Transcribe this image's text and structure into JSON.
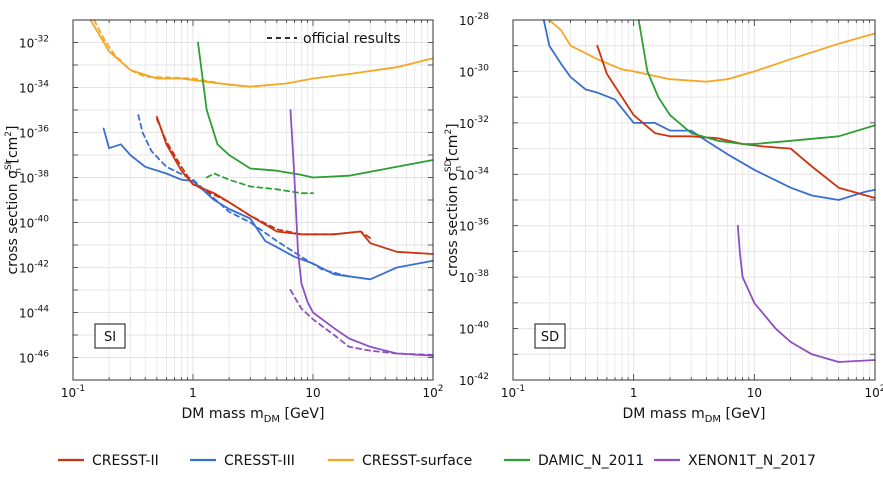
{
  "colors": {
    "cresst_ii": "#cc3311",
    "cresst_iii": "#3a6fd1",
    "cresst_surface": "#f5a623",
    "damic": "#2e9e35",
    "xenon": "#8e4fc4",
    "grid": "#e4e4e4",
    "frame": "#333333"
  },
  "legend_items": [
    {
      "key": "cresst_ii",
      "label": "CRESST-II"
    },
    {
      "key": "cresst_iii",
      "label": "CRESST-III"
    },
    {
      "key": "cresst_surface",
      "label": "CRESST-surface"
    },
    {
      "key": "damic",
      "label": "DAMIC_N_2011"
    },
    {
      "key": "xenon",
      "label": "XENON1T_N_2017"
    }
  ],
  "chart_data": [
    {
      "type": "line",
      "panel_label": "SI",
      "xlabel": "DM mass m_DM [GeV]",
      "ylabel": "cross section σ_n^SI [cm²]",
      "x_scale": "log",
      "y_scale": "log",
      "xlim": [
        0.1,
        100
      ],
      "ylim": [
        1e-47,
        1e-31
      ],
      "x_tick_labels": [
        {
          "base": "10",
          "exp": "-1"
        },
        {
          "base": "1",
          "exp": ""
        },
        {
          "base": "10",
          "exp": ""
        },
        {
          "base": "10",
          "exp": "2"
        }
      ],
      "y_tick_labels": [
        "-32",
        "-34",
        "-36",
        "-38",
        "-40",
        "-42",
        "-44",
        "-46"
      ],
      "grid": true,
      "annotation": "official results",
      "annotation_position": "top-right",
      "series": [
        {
          "key": "cresst_surface",
          "name": "CRESST-surface",
          "style": "solid",
          "points": [
            [
              0.14,
              1e-31
            ],
            [
              0.16,
              3e-32
            ],
            [
              0.2,
              4e-33
            ],
            [
              0.3,
              6e-34
            ],
            [
              0.5,
              2.5e-34
            ],
            [
              0.8,
              2.5e-34
            ],
            [
              1.5,
              1.6e-34
            ],
            [
              3,
              1.1e-34
            ],
            [
              6,
              1.5e-34
            ],
            [
              10,
              2.5e-34
            ],
            [
              20,
              4e-34
            ],
            [
              50,
              8e-34
            ],
            [
              100,
              2e-33
            ]
          ]
        },
        {
          "key": "cresst_surface",
          "name": "CRESST-surface",
          "style": "dashed",
          "points": [
            [
              0.15,
              1e-31
            ],
            [
              0.18,
              1.5e-32
            ],
            [
              0.22,
              3e-33
            ],
            [
              0.3,
              6e-34
            ],
            [
              0.4,
              3e-34
            ],
            [
              0.6,
              2.8e-34
            ],
            [
              1,
              2.5e-34
            ],
            [
              2,
              1.3e-34
            ],
            [
              3,
              1.1e-34
            ],
            [
              4,
              1.2e-34
            ]
          ]
        },
        {
          "key": "cresst_iii",
          "name": "CRESST-III",
          "style": "solid",
          "points": [
            [
              0.18,
              1.5e-36
            ],
            [
              0.2,
              2e-37
            ],
            [
              0.25,
              3e-37
            ],
            [
              0.3,
              1e-37
            ],
            [
              0.4,
              3e-38
            ],
            [
              0.6,
              1.5e-38
            ],
            [
              0.8,
              8e-39
            ],
            [
              1,
              7e-39
            ],
            [
              1.5,
              1e-39
            ],
            [
              2,
              4e-40
            ],
            [
              3,
              1.5e-40
            ],
            [
              4,
              1.5e-41
            ],
            [
              5,
              8e-42
            ],
            [
              7,
              3e-42
            ],
            [
              10,
              1.5e-42
            ],
            [
              15,
              5e-43
            ],
            [
              30,
              3e-43
            ],
            [
              50,
              1e-42
            ],
            [
              100,
              2e-42
            ]
          ]
        },
        {
          "key": "cresst_iii",
          "name": "CRESST-III",
          "style": "dashed",
          "points": [
            [
              0.35,
              6e-36
            ],
            [
              0.38,
              1e-36
            ],
            [
              0.45,
              1.5e-37
            ],
            [
              0.6,
              3e-38
            ],
            [
              1,
              8e-39
            ],
            [
              2,
              3e-40
            ],
            [
              3,
              1e-40
            ],
            [
              5,
              1.5e-41
            ],
            [
              8,
              3e-42
            ],
            [
              12,
              8e-43
            ],
            [
              20,
              4e-43
            ]
          ]
        },
        {
          "key": "cresst_ii",
          "name": "CRESST-II",
          "style": "solid",
          "points": [
            [
              0.5,
              5e-36
            ],
            [
              0.6,
              3e-37
            ],
            [
              0.8,
              2e-38
            ],
            [
              1,
              5e-39
            ],
            [
              1.5,
              2e-39
            ],
            [
              2,
              8e-40
            ],
            [
              3,
              2e-40
            ],
            [
              5,
              4e-41
            ],
            [
              8,
              3e-41
            ],
            [
              15,
              3e-41
            ],
            [
              25,
              4e-41
            ],
            [
              30,
              1.2e-41
            ],
            [
              50,
              5e-42
            ],
            [
              100,
              4e-42
            ]
          ]
        },
        {
          "key": "cresst_ii",
          "name": "CRESST-II",
          "style": "dashed",
          "points": [
            [
              0.5,
              4e-36
            ],
            [
              0.6,
              4e-37
            ],
            [
              0.8,
              3e-38
            ],
            [
              1,
              5e-39
            ],
            [
              2,
              8e-40
            ],
            [
              3,
              2e-40
            ],
            [
              5,
              5e-41
            ],
            [
              8,
              3e-41
            ],
            [
              15,
              3e-41
            ],
            [
              25,
              4e-41
            ],
            [
              30,
              2e-41
            ]
          ]
        },
        {
          "key": "damic",
          "name": "DAMIC_N_2011",
          "style": "solid",
          "points": [
            [
              1.1,
              1e-32
            ],
            [
              1.3,
              1e-35
            ],
            [
              1.6,
              3e-37
            ],
            [
              2,
              1e-37
            ],
            [
              3,
              2.5e-38
            ],
            [
              5,
              2e-38
            ],
            [
              8,
              1.3e-38
            ],
            [
              10,
              1e-38
            ],
            [
              20,
              1.2e-38
            ],
            [
              50,
              3e-38
            ],
            [
              100,
              6e-38
            ]
          ]
        },
        {
          "key": "damic",
          "name": "DAMIC_N_2011",
          "style": "dashed",
          "points": [
            [
              1.3,
              1e-38
            ],
            [
              1.5,
              1.5e-38
            ],
            [
              2,
              8e-39
            ],
            [
              3,
              4e-39
            ],
            [
              5,
              3e-39
            ],
            [
              8,
              2e-39
            ],
            [
              10,
              2e-39
            ]
          ]
        },
        {
          "key": "xenon",
          "name": "XENON1T_N_2017",
          "style": "solid",
          "points": [
            [
              6.5,
              1e-35
            ],
            [
              7,
              1e-38
            ],
            [
              7.5,
              5e-42
            ],
            [
              8,
              2e-43
            ],
            [
              9,
              3e-44
            ],
            [
              10,
              1e-44
            ],
            [
              15,
              2e-45
            ],
            [
              20,
              7e-46
            ],
            [
              30,
              3e-46
            ],
            [
              50,
              1.5e-46
            ],
            [
              100,
              1.2e-46
            ]
          ]
        },
        {
          "key": "xenon",
          "name": "XENON1T_N_2017",
          "style": "dashed",
          "points": [
            [
              6.5,
              1e-43
            ],
            [
              7,
              5e-44
            ],
            [
              8,
              1.5e-44
            ],
            [
              10,
              5e-45
            ],
            [
              15,
              1e-45
            ],
            [
              20,
              3e-46
            ],
            [
              30,
              2e-46
            ],
            [
              50,
              1.5e-46
            ],
            [
              100,
              1.3e-46
            ]
          ]
        }
      ]
    },
    {
      "type": "line",
      "panel_label": "SD",
      "xlabel": "DM mass m_DM [GeV]",
      "ylabel": "cross section σ_n^SD [cm²]",
      "x_scale": "log",
      "y_scale": "log",
      "xlim": [
        0.1,
        100
      ],
      "ylim": [
        1e-42,
        1e-28
      ],
      "x_tick_labels": [
        {
          "base": "10",
          "exp": "-1"
        },
        {
          "base": "1",
          "exp": ""
        },
        {
          "base": "10",
          "exp": ""
        },
        {
          "base": "10",
          "exp": "2"
        }
      ],
      "y_tick_labels": [
        "-28",
        "-30",
        "-32",
        "-34",
        "-36",
        "-38",
        "-40",
        "-42"
      ],
      "grid": true,
      "series": [
        {
          "key": "cresst_surface",
          "name": "CRESST-surface",
          "style": "solid",
          "points": [
            [
              0.2,
              1e-28
            ],
            [
              0.25,
              4e-29
            ],
            [
              0.3,
              1e-29
            ],
            [
              0.5,
              3e-30
            ],
            [
              0.8,
              1.2e-30
            ],
            [
              1,
              1e-30
            ],
            [
              2,
              5e-31
            ],
            [
              4,
              4e-31
            ],
            [
              6,
              5e-31
            ],
            [
              10,
              1e-30
            ],
            [
              20,
              3e-30
            ],
            [
              50,
              1.2e-29
            ],
            [
              100,
              3e-29
            ]
          ]
        },
        {
          "key": "cresst_iii",
          "name": "CRESST-III",
          "style": "solid",
          "points": [
            [
              0.18,
              1.3e-28
            ],
            [
              0.2,
              1e-29
            ],
            [
              0.25,
              2e-30
            ],
            [
              0.3,
              6e-31
            ],
            [
              0.4,
              2e-31
            ],
            [
              0.5,
              1.5e-31
            ],
            [
              0.7,
              8e-32
            ],
            [
              1,
              1e-32
            ],
            [
              1.5,
              1e-32
            ],
            [
              2,
              5e-33
            ],
            [
              3,
              5e-33
            ],
            [
              4,
              2e-33
            ],
            [
              6,
              6e-34
            ],
            [
              10,
              1.5e-34
            ],
            [
              20,
              3e-35
            ],
            [
              30,
              1.5e-35
            ],
            [
              50,
              1e-35
            ],
            [
              80,
              2e-35
            ],
            [
              100,
              2.5e-35
            ]
          ]
        },
        {
          "key": "cresst_ii",
          "name": "CRESST-II",
          "style": "solid",
          "points": [
            [
              0.5,
              1e-29
            ],
            [
              0.6,
              8e-31
            ],
            [
              0.8,
              1e-31
            ],
            [
              1,
              2e-32
            ],
            [
              1.5,
              4e-33
            ],
            [
              2,
              3e-33
            ],
            [
              3,
              3e-33
            ],
            [
              5,
              2.5e-33
            ],
            [
              8,
              1.5e-33
            ],
            [
              12,
              1.2e-33
            ],
            [
              20,
              1e-33
            ],
            [
              30,
              2e-34
            ],
            [
              50,
              3e-35
            ],
            [
              100,
              1.2e-35
            ]
          ]
        },
        {
          "key": "damic",
          "name": "DAMIC_N_2011",
          "style": "solid",
          "points": [
            [
              1.1,
              1e-28
            ],
            [
              1.3,
              1e-30
            ],
            [
              1.6,
              1e-31
            ],
            [
              2,
              2e-32
            ],
            [
              3,
              4e-33
            ],
            [
              5,
              2e-33
            ],
            [
              8,
              1.5e-33
            ],
            [
              10,
              1.5e-33
            ],
            [
              20,
              2e-33
            ],
            [
              50,
              3e-33
            ],
            [
              100,
              8e-33
            ]
          ]
        },
        {
          "key": "xenon",
          "name": "XENON1T_N_2017",
          "style": "solid",
          "points": [
            [
              7.3,
              1e-36
            ],
            [
              7.6,
              8e-38
            ],
            [
              8,
              1e-38
            ],
            [
              10,
              1e-39
            ],
            [
              15,
              1e-40
            ],
            [
              20,
              3e-41
            ],
            [
              30,
              1e-41
            ],
            [
              50,
              5e-42
            ],
            [
              100,
              6e-42
            ]
          ]
        }
      ]
    }
  ]
}
